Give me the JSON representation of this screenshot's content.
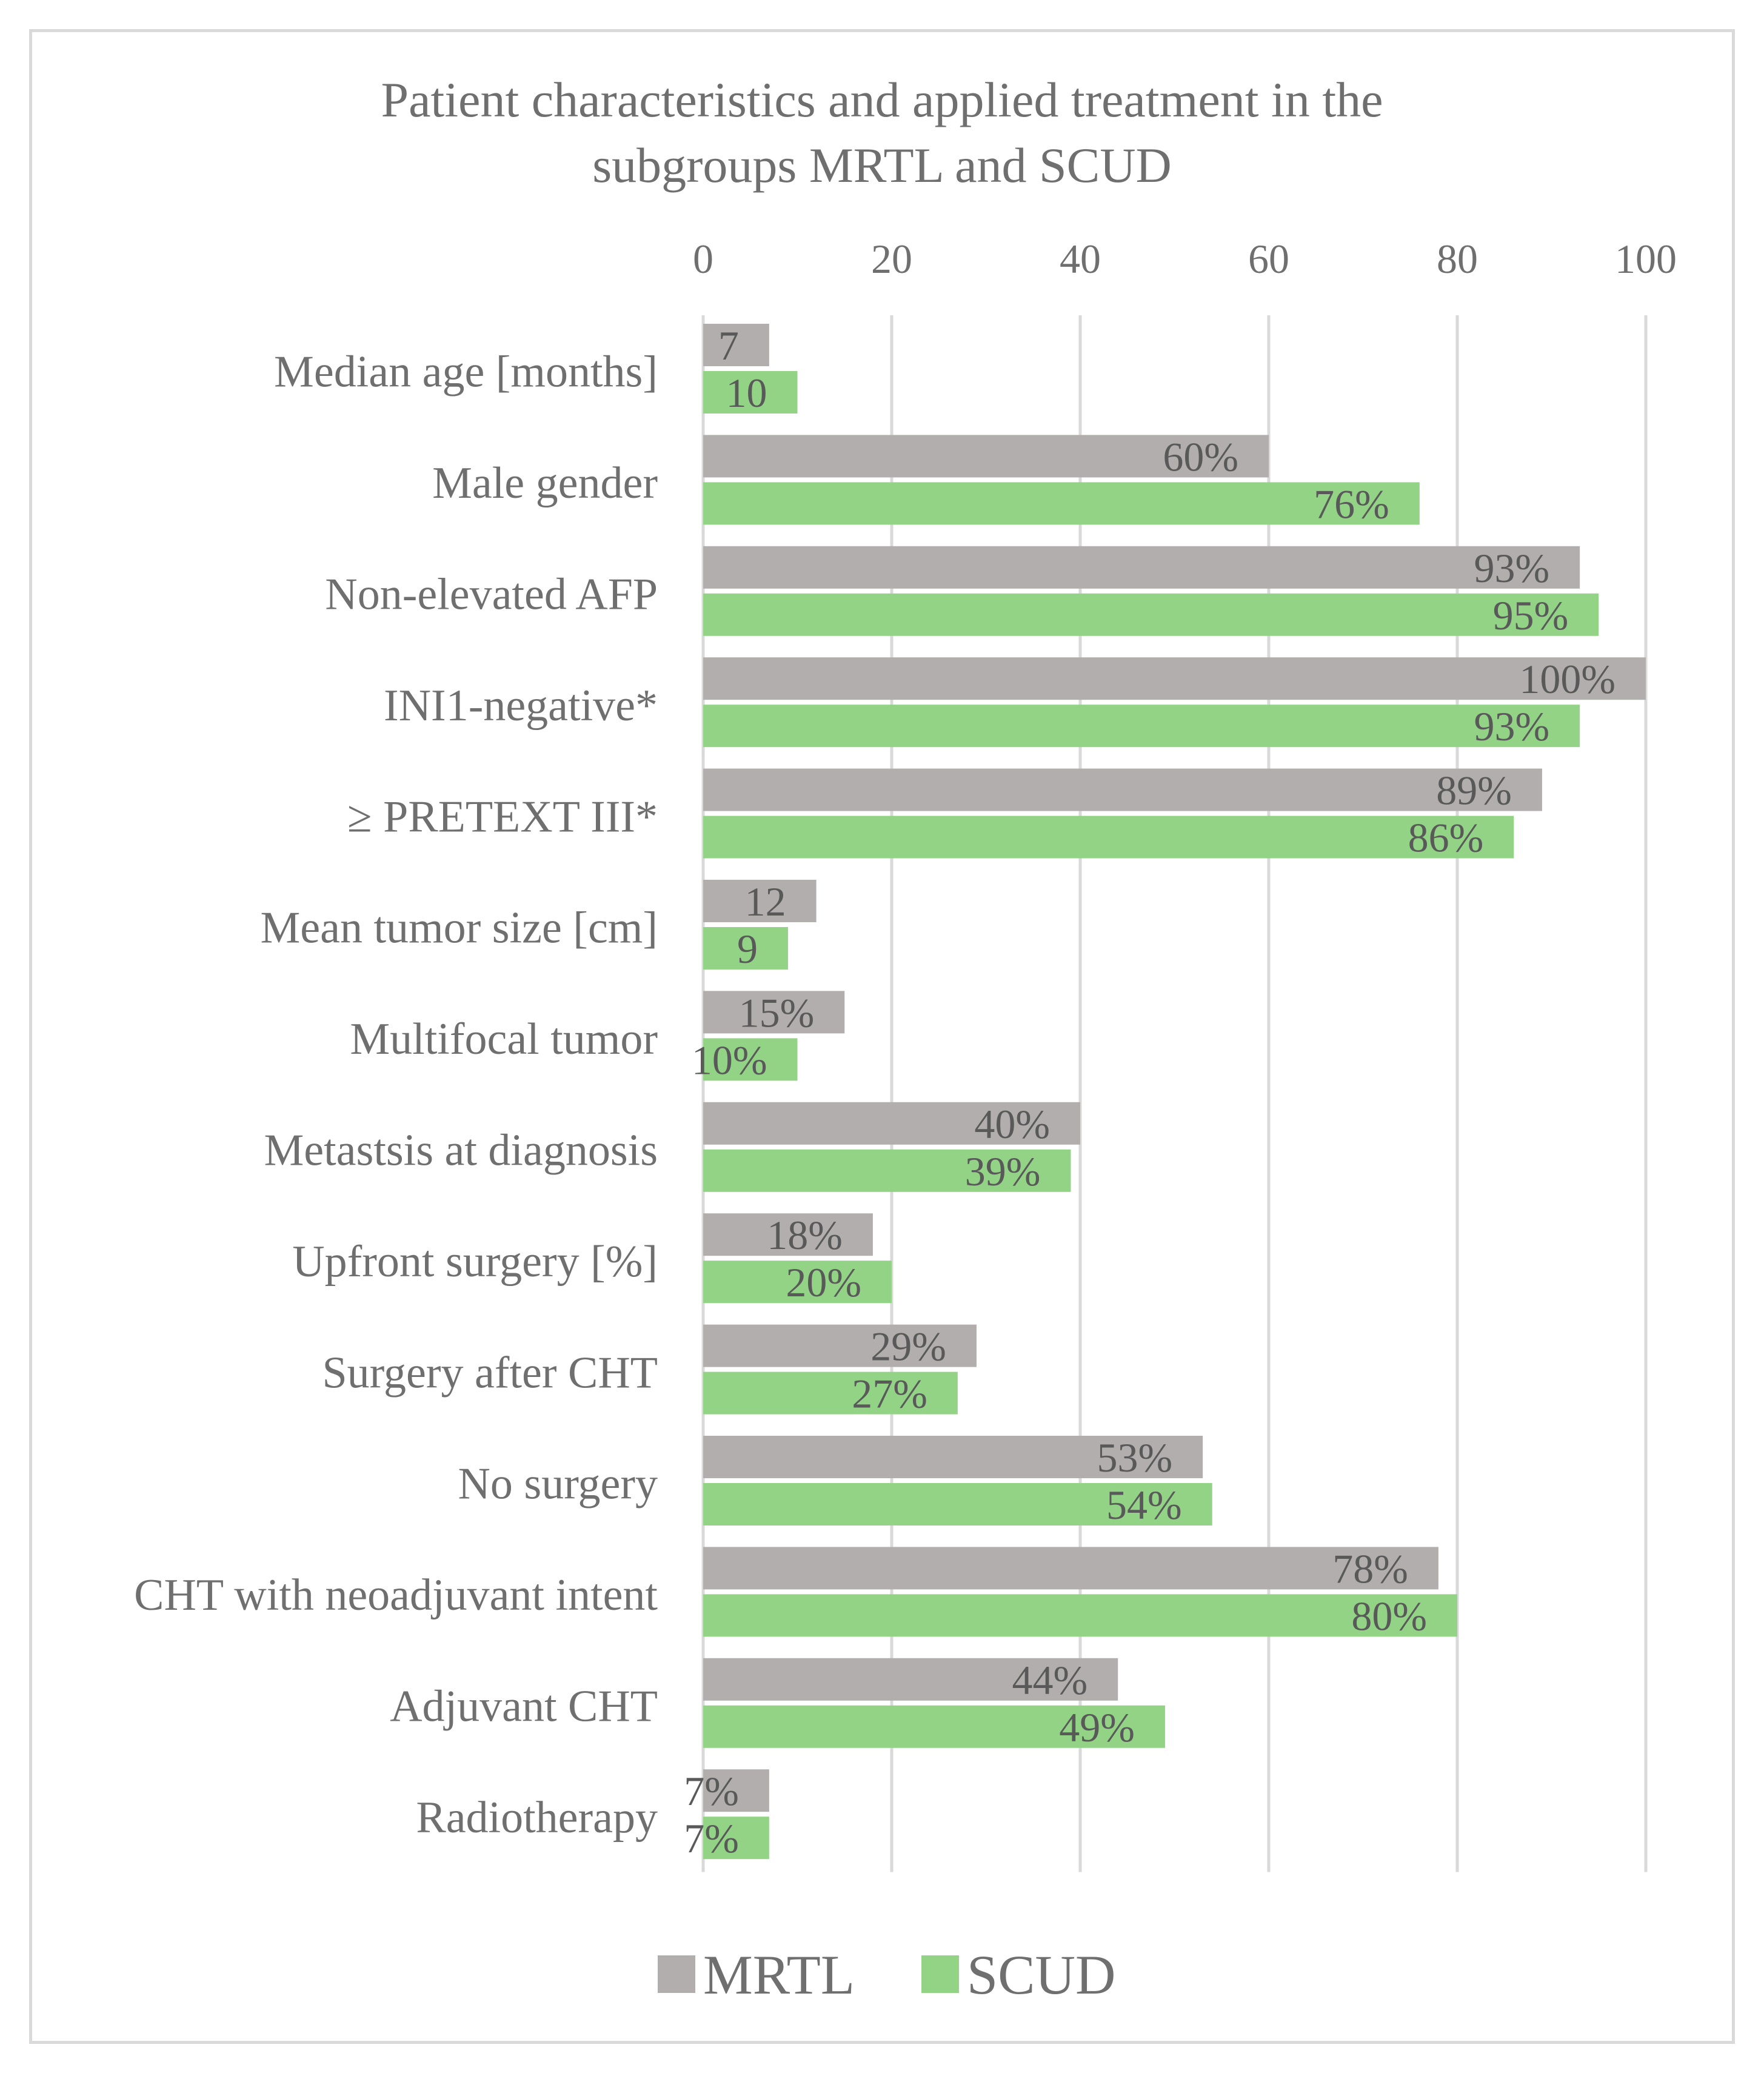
{
  "chart_data": {
    "type": "bar",
    "orientation": "horizontal",
    "title_lines": [
      "Patient characteristics and applied treatment in the",
      "subgroups MRTL and SCUD"
    ],
    "categories": [
      "Median age [months]",
      "Male gender",
      "Non-elevated AFP",
      "INI1-negative*",
      "≥ PRETEXT III*",
      "Mean tumor size [cm]",
      "Multifocal tumor",
      "Metastsis at diagnosis",
      "Upfront surgery [%]",
      "Surgery after CHT",
      "No surgery",
      "CHT with neoadjuvant intent",
      "Adjuvant CHT",
      "Radiotherapy"
    ],
    "series": [
      {
        "name": "MRTL",
        "color": "#b2aeae",
        "values": [
          7,
          60,
          93,
          100,
          89,
          12,
          15,
          40,
          18,
          29,
          53,
          78,
          44,
          7
        ],
        "labels": [
          "7",
          "60%",
          "93%",
          "100%",
          "89%",
          "12",
          "15%",
          "40%",
          "18%",
          "29%",
          "53%",
          "78%",
          "44%",
          "7%"
        ]
      },
      {
        "name": "SCUD",
        "color": "#92d386",
        "values": [
          10,
          76,
          95,
          93,
          86,
          9,
          10,
          39,
          20,
          27,
          54,
          80,
          49,
          7
        ],
        "labels": [
          "10",
          "76%",
          "95%",
          "93%",
          "86%",
          "9",
          "10%",
          "39%",
          "20%",
          "27%",
          "54%",
          "80%",
          "49%",
          "7%"
        ]
      }
    ],
    "xlim": [
      0,
      100
    ],
    "xticks": [
      "0",
      "20",
      "40",
      "60",
      "80",
      "100"
    ],
    "axis_position": "top",
    "gridlines": true,
    "legend_position": "bottom-center",
    "xlabel": "",
    "ylabel": ""
  }
}
